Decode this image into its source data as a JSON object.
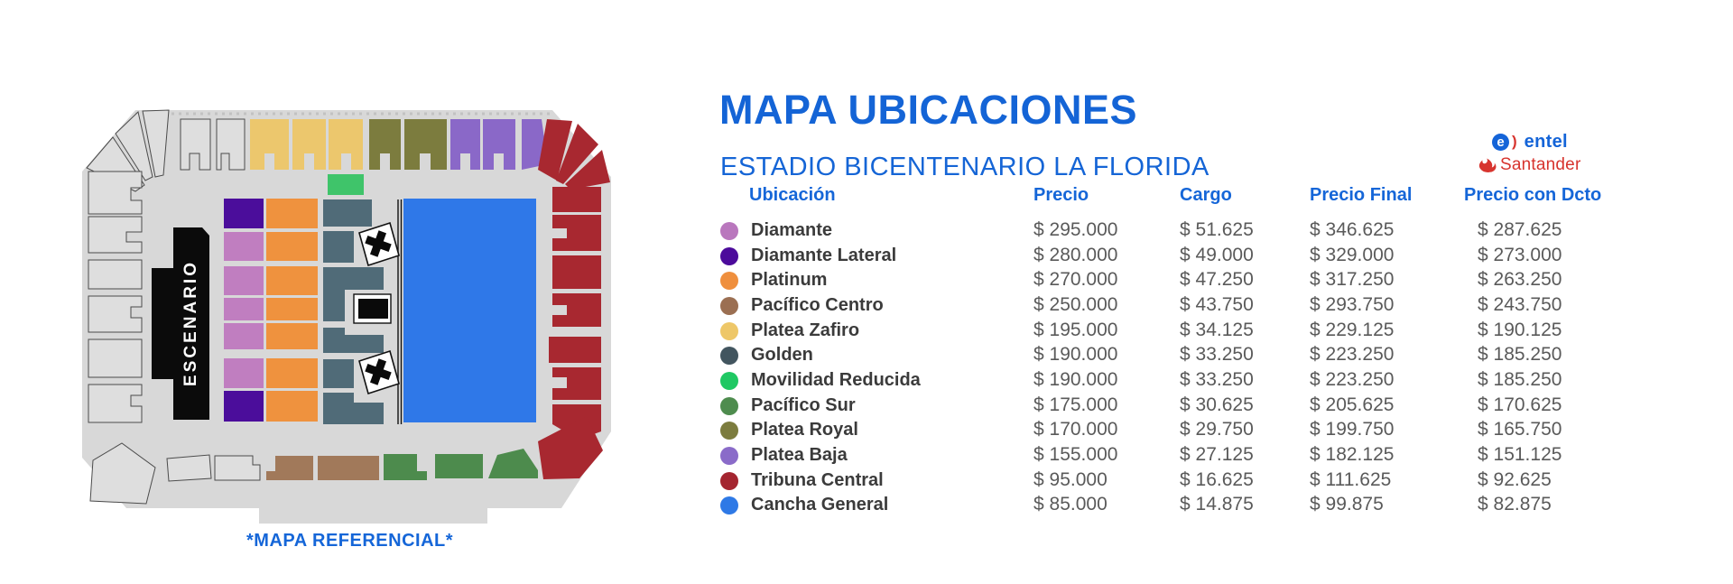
{
  "header": {
    "title": "MAPA UBICACIONES",
    "subtitle": "ESTADIO BICENTENARIO LA FLORIDA",
    "accent_color": "#1465d6"
  },
  "sponsors": {
    "entel_e": "e",
    "entel_paren": ")",
    "entel_label": "entel",
    "santander_label": "Santander",
    "entel_blue": "#1464d8",
    "santander_red": "#d7342e"
  },
  "map": {
    "stage_label": "ESCENARIO",
    "caption": "*MAPA REFERENCIAL*",
    "palette": {
      "gray": "#d8d8d8",
      "outlined": "#dedede",
      "zafiro": "#ecc76d",
      "royal": "#7c7c3e",
      "baja": "#8a68c8",
      "tribuna": "#a82830",
      "lateral": "#4b0d9b",
      "diamante": "#c07ec0",
      "platinum": "#ef923e",
      "golden": "#506b78",
      "cancha": "#2f78e8",
      "centro": "#a1795a",
      "sur": "#4d8b4d",
      "movilidad": "#3fc46a",
      "stage": "#0b0b0b"
    }
  },
  "table": {
    "headers": {
      "ubicacion": "Ubicación",
      "precio": "Precio",
      "cargo": "Cargo",
      "precio_final": "Precio Final",
      "precio_dcto": "Precio con Dcto"
    },
    "rows": [
      {
        "label": "Diamante",
        "color": "#b977bd",
        "precio": "$ 295.000",
        "cargo": "$ 51.625",
        "final": "$ 346.625",
        "dcto": "$ 287.625"
      },
      {
        "label": "Diamante Lateral",
        "color": "#4c0b9b",
        "precio": "$ 280.000",
        "cargo": "$ 49.000",
        "final": "$ 329.000",
        "dcto": "$ 273.000"
      },
      {
        "label": "Platinum",
        "color": "#ef8f3d",
        "precio": "$ 270.000",
        "cargo": "$ 47.250",
        "final": "$ 317.250",
        "dcto": "$ 263.250"
      },
      {
        "label": "Pacífico Centro",
        "color": "#9b6f52",
        "precio": "$ 250.000",
        "cargo": "$ 43.750",
        "final": "$ 293.750",
        "dcto": "$ 243.750"
      },
      {
        "label": "Platea Zafiro",
        "color": "#eec768",
        "precio": "$ 195.000",
        "cargo": "$ 34.125",
        "final": "$ 229.125",
        "dcto": "$ 190.125"
      },
      {
        "label": "Golden",
        "color": "#42555f",
        "precio": "$ 190.000",
        "cargo": "$ 33.250",
        "final": "$ 223.250",
        "dcto": "$ 185.250"
      },
      {
        "label": "Movilidad Reducida",
        "color": "#1fc863",
        "precio": "$ 190.000",
        "cargo": "$ 33.250",
        "final": "$ 223.250",
        "dcto": "$ 185.250"
      },
      {
        "label": "Pacífico Sur",
        "color": "#4e8c4e",
        "precio": "$ 175.000",
        "cargo": "$ 30.625",
        "final": "$ 205.625",
        "dcto": "$ 170.625"
      },
      {
        "label": "Platea Royal",
        "color": "#7c7c3e",
        "precio": "$ 170.000",
        "cargo": "$ 29.750",
        "final": "$ 199.750",
        "dcto": "$ 165.750"
      },
      {
        "label": "Platea Baja",
        "color": "#8a6bc9",
        "precio": "$ 155.000",
        "cargo": "$ 27.125",
        "final": "$ 182.125",
        "dcto": "$ 151.125"
      },
      {
        "label": "Tribuna Central",
        "color": "#a42530",
        "precio": "$ 95.000",
        "cargo": "$ 16.625",
        "final": "$ 111.625",
        "dcto": "$ 92.625"
      },
      {
        "label": "Cancha General",
        "color": "#2e79e6",
        "precio": "$ 85.000",
        "cargo": "$ 14.875",
        "final": "$ 99.875",
        "dcto": "$ 82.875"
      }
    ]
  }
}
